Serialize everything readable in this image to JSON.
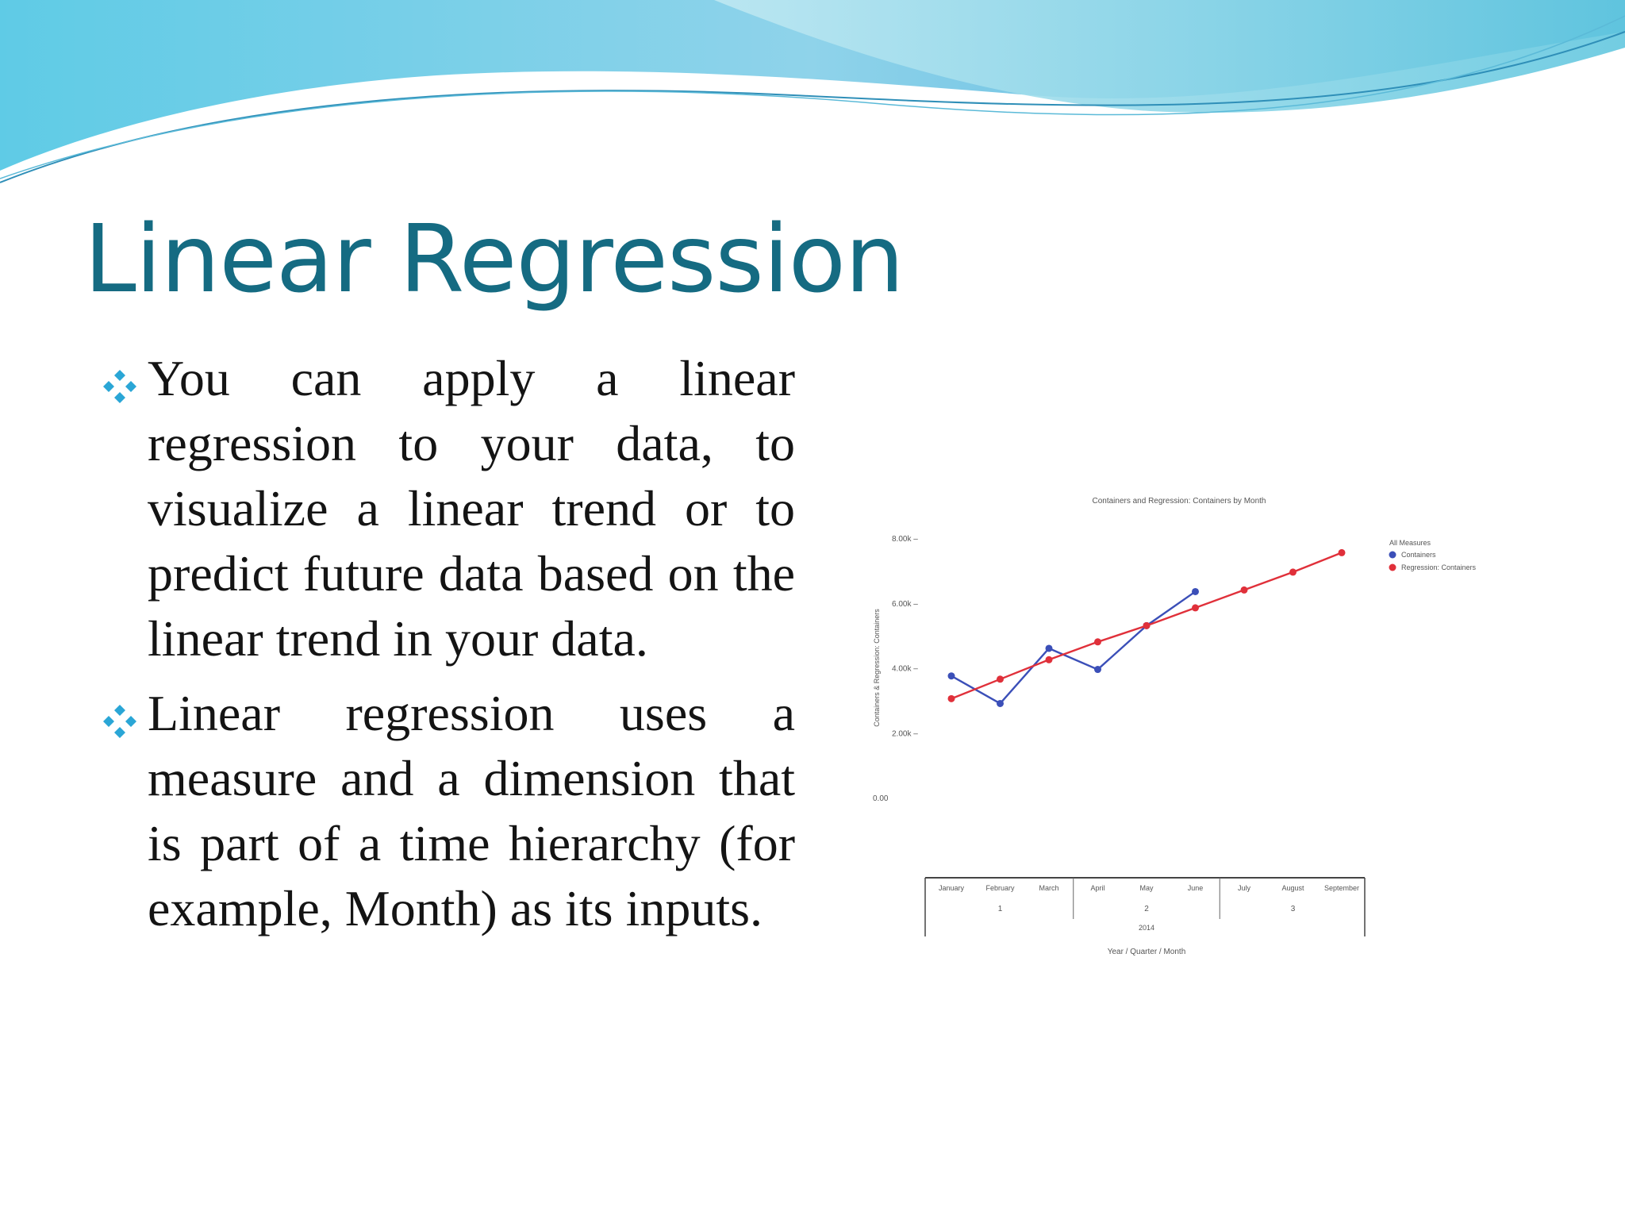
{
  "slide": {
    "title": "Linear Regression",
    "bullets": [
      "You can apply a linear regression to your data, to visualize a linear trend or to predict future data based on the linear trend in your data.",
      "Linear regression uses a measure and a dimension that is part of a time hierarchy (for example, Month) as its inputs."
    ],
    "bullet_icon": "four-diamond-bullet-icon",
    "colors": {
      "title": "#156b82",
      "bullet_icon": "#2aa6d6",
      "text": "#141414"
    }
  },
  "chart_data": {
    "type": "line",
    "title": "Containers and Regression: Containers by Month",
    "ylabel": "Containers & Regression: Containers",
    "xlabel": "Year / Quarter / Month",
    "categories": [
      "January",
      "February",
      "March",
      "April",
      "May",
      "June",
      "July",
      "August",
      "September"
    ],
    "quarters": [
      "1",
      "2",
      "3"
    ],
    "year": "2014",
    "yticks": [
      "0.00",
      "2.00k",
      "4.00k",
      "6.00k",
      "8.00k"
    ],
    "ylim": [
      0,
      8000
    ],
    "legend_title": "All Measures",
    "legend_position": "top-right",
    "series": [
      {
        "name": "Containers",
        "color": "#3b4fb8",
        "values": [
          3750,
          2900,
          4600,
          3950,
          5300,
          6350,
          null,
          null,
          null
        ]
      },
      {
        "name": "Regression: Containers",
        "color": "#e0303a",
        "values": [
          3050,
          3650,
          4250,
          4800,
          5300,
          5850,
          6400,
          6950,
          7550
        ]
      }
    ]
  }
}
